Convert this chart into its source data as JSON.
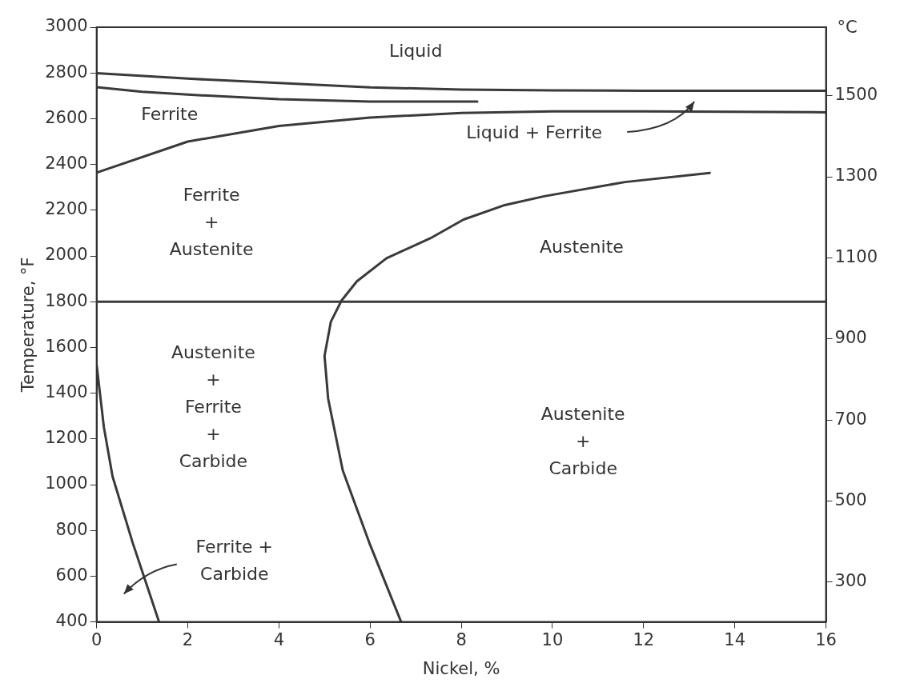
{
  "chart_data": {
    "type": "line",
    "xlabel": "Nickel, %",
    "ylabel": "Temperature, °F",
    "y2label": "°C",
    "xlim": [
      0,
      16
    ],
    "xticks": [
      0,
      2,
      4,
      6,
      8,
      10,
      12,
      14,
      16
    ],
    "ylim": [
      400,
      3000
    ],
    "yticks": [
      400,
      600,
      800,
      1000,
      1200,
      1400,
      1600,
      1800,
      2000,
      2200,
      2400,
      2600,
      2800,
      3000
    ],
    "y2lim": [
      202,
      1669
    ],
    "y2ticks": [
      300,
      500,
      700,
      900,
      1100,
      1300,
      1500
    ],
    "grid": false,
    "legend": false,
    "marker": "none",
    "line_style": "solid",
    "series": [
      {
        "color": "#3a3a3a",
        "x": [
          0,
          2,
          4,
          6,
          8,
          10,
          12,
          16
        ],
        "values": [
          2799,
          2775,
          2756,
          2737,
          2727,
          2724,
          2722,
          2722
        ]
      },
      {
        "color": "#3a3a3a",
        "x": [
          0,
          1,
          2,
          4,
          6,
          8.35
        ],
        "values": [
          2738,
          2718,
          2705,
          2685,
          2675,
          2675
        ]
      },
      {
        "color": "#3a3a3a",
        "x": [
          0,
          2,
          4,
          6,
          8,
          10,
          12,
          16
        ],
        "values": [
          2364,
          2500,
          2568,
          2605,
          2625,
          2632,
          2632,
          2628
        ]
      },
      {
        "color": "#3a3a3a",
        "x": [
          6.68,
          5.98,
          5.4,
          5.08,
          5.0,
          5.14,
          5.37,
          5.71,
          6.36,
          7.32,
          8.05,
          8.93,
          9.82,
          11.59,
          13.45
        ],
        "values": [
          400,
          747,
          1062,
          1375,
          1563,
          1713,
          1804,
          1889,
          1990,
          2077,
          2159,
          2221,
          2261,
          2323,
          2363
        ]
      },
      {
        "color": "#3a3a3a",
        "x": [
          0,
          0.16,
          0.35,
          0.79,
          1.37
        ],
        "values": [
          1525,
          1251,
          1036,
          747,
          400
        ]
      }
    ],
    "ref_lines": [
      {
        "axis": "y",
        "value": 1800
      }
    ],
    "annotations": [
      "Liquid",
      "Ferrite",
      "Liquid + Ferrite",
      "Ferrite\n+\nAustenite",
      "Austenite",
      "Austenite\n+\nFerrite\n+\nCarbide",
      "Austenite\n+\nCarbide",
      "Ferrite +\nCarbide"
    ]
  }
}
